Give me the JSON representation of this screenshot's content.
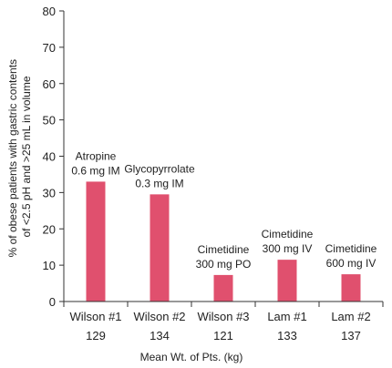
{
  "chart_data": {
    "type": "bar",
    "title": "",
    "xlabel": "Mean Wt. of Pts. (kg)",
    "ylabel_lines": [
      "% of obese patients with gastric contents",
      "of <2.5 pH and >25 mL in volume"
    ],
    "ylim": [
      0,
      80
    ],
    "yticks": [
      0,
      10,
      20,
      30,
      40,
      50,
      60,
      70,
      80
    ],
    "grid": false,
    "bar_color": "#e0506e",
    "categories": [
      {
        "name": "Wilson #1",
        "weight": "129",
        "value": 33,
        "annotation": [
          "Atropine",
          "0.6 mg IM"
        ]
      },
      {
        "name": "Wilson #2",
        "weight": "134",
        "value": 29.5,
        "annotation": [
          "Glycopyrrolate",
          "0.3 mg IM"
        ]
      },
      {
        "name": "Wilson #3",
        "weight": "121",
        "value": 7.3,
        "annotation": [
          "Cimetidine",
          "300 mg PO"
        ]
      },
      {
        "name": "Lam #1",
        "weight": "133",
        "value": 11.5,
        "annotation": [
          "Cimetidine",
          "300 mg IV"
        ]
      },
      {
        "name": "Lam #2",
        "weight": "137",
        "value": 7.5,
        "annotation": [
          "Cimetidine",
          "600 mg IV"
        ]
      }
    ]
  }
}
